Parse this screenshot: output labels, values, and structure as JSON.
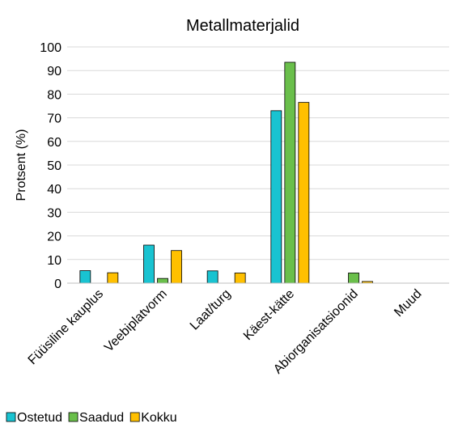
{
  "chart_data": {
    "type": "bar",
    "title": "Metallmaterjalid",
    "xlabel": "",
    "ylabel": "Protsent (%)",
    "ylim": [
      0,
      100
    ],
    "yticks": [
      0,
      10,
      20,
      30,
      40,
      50,
      60,
      70,
      80,
      90,
      100
    ],
    "grid": true,
    "legend_position": "bottom-left",
    "categories": [
      "Füüsiline kauplus",
      "Veebiplatvorm",
      "Laat/turg",
      "Käest-kätte",
      "Abiorganisatsioonid",
      "Muud"
    ],
    "series": [
      {
        "name": "Ostetud",
        "color": "#19c3d1",
        "values": [
          5.3,
          16.1,
          5.2,
          73.0,
          0,
          0
        ]
      },
      {
        "name": "Saadud",
        "color": "#6abf4b",
        "values": [
          0,
          2.0,
          0,
          93.5,
          4.3,
          0
        ]
      },
      {
        "name": "Kokku",
        "color": "#ffc000",
        "values": [
          4.4,
          13.8,
          4.3,
          76.5,
          0.7,
          0
        ]
      }
    ]
  }
}
